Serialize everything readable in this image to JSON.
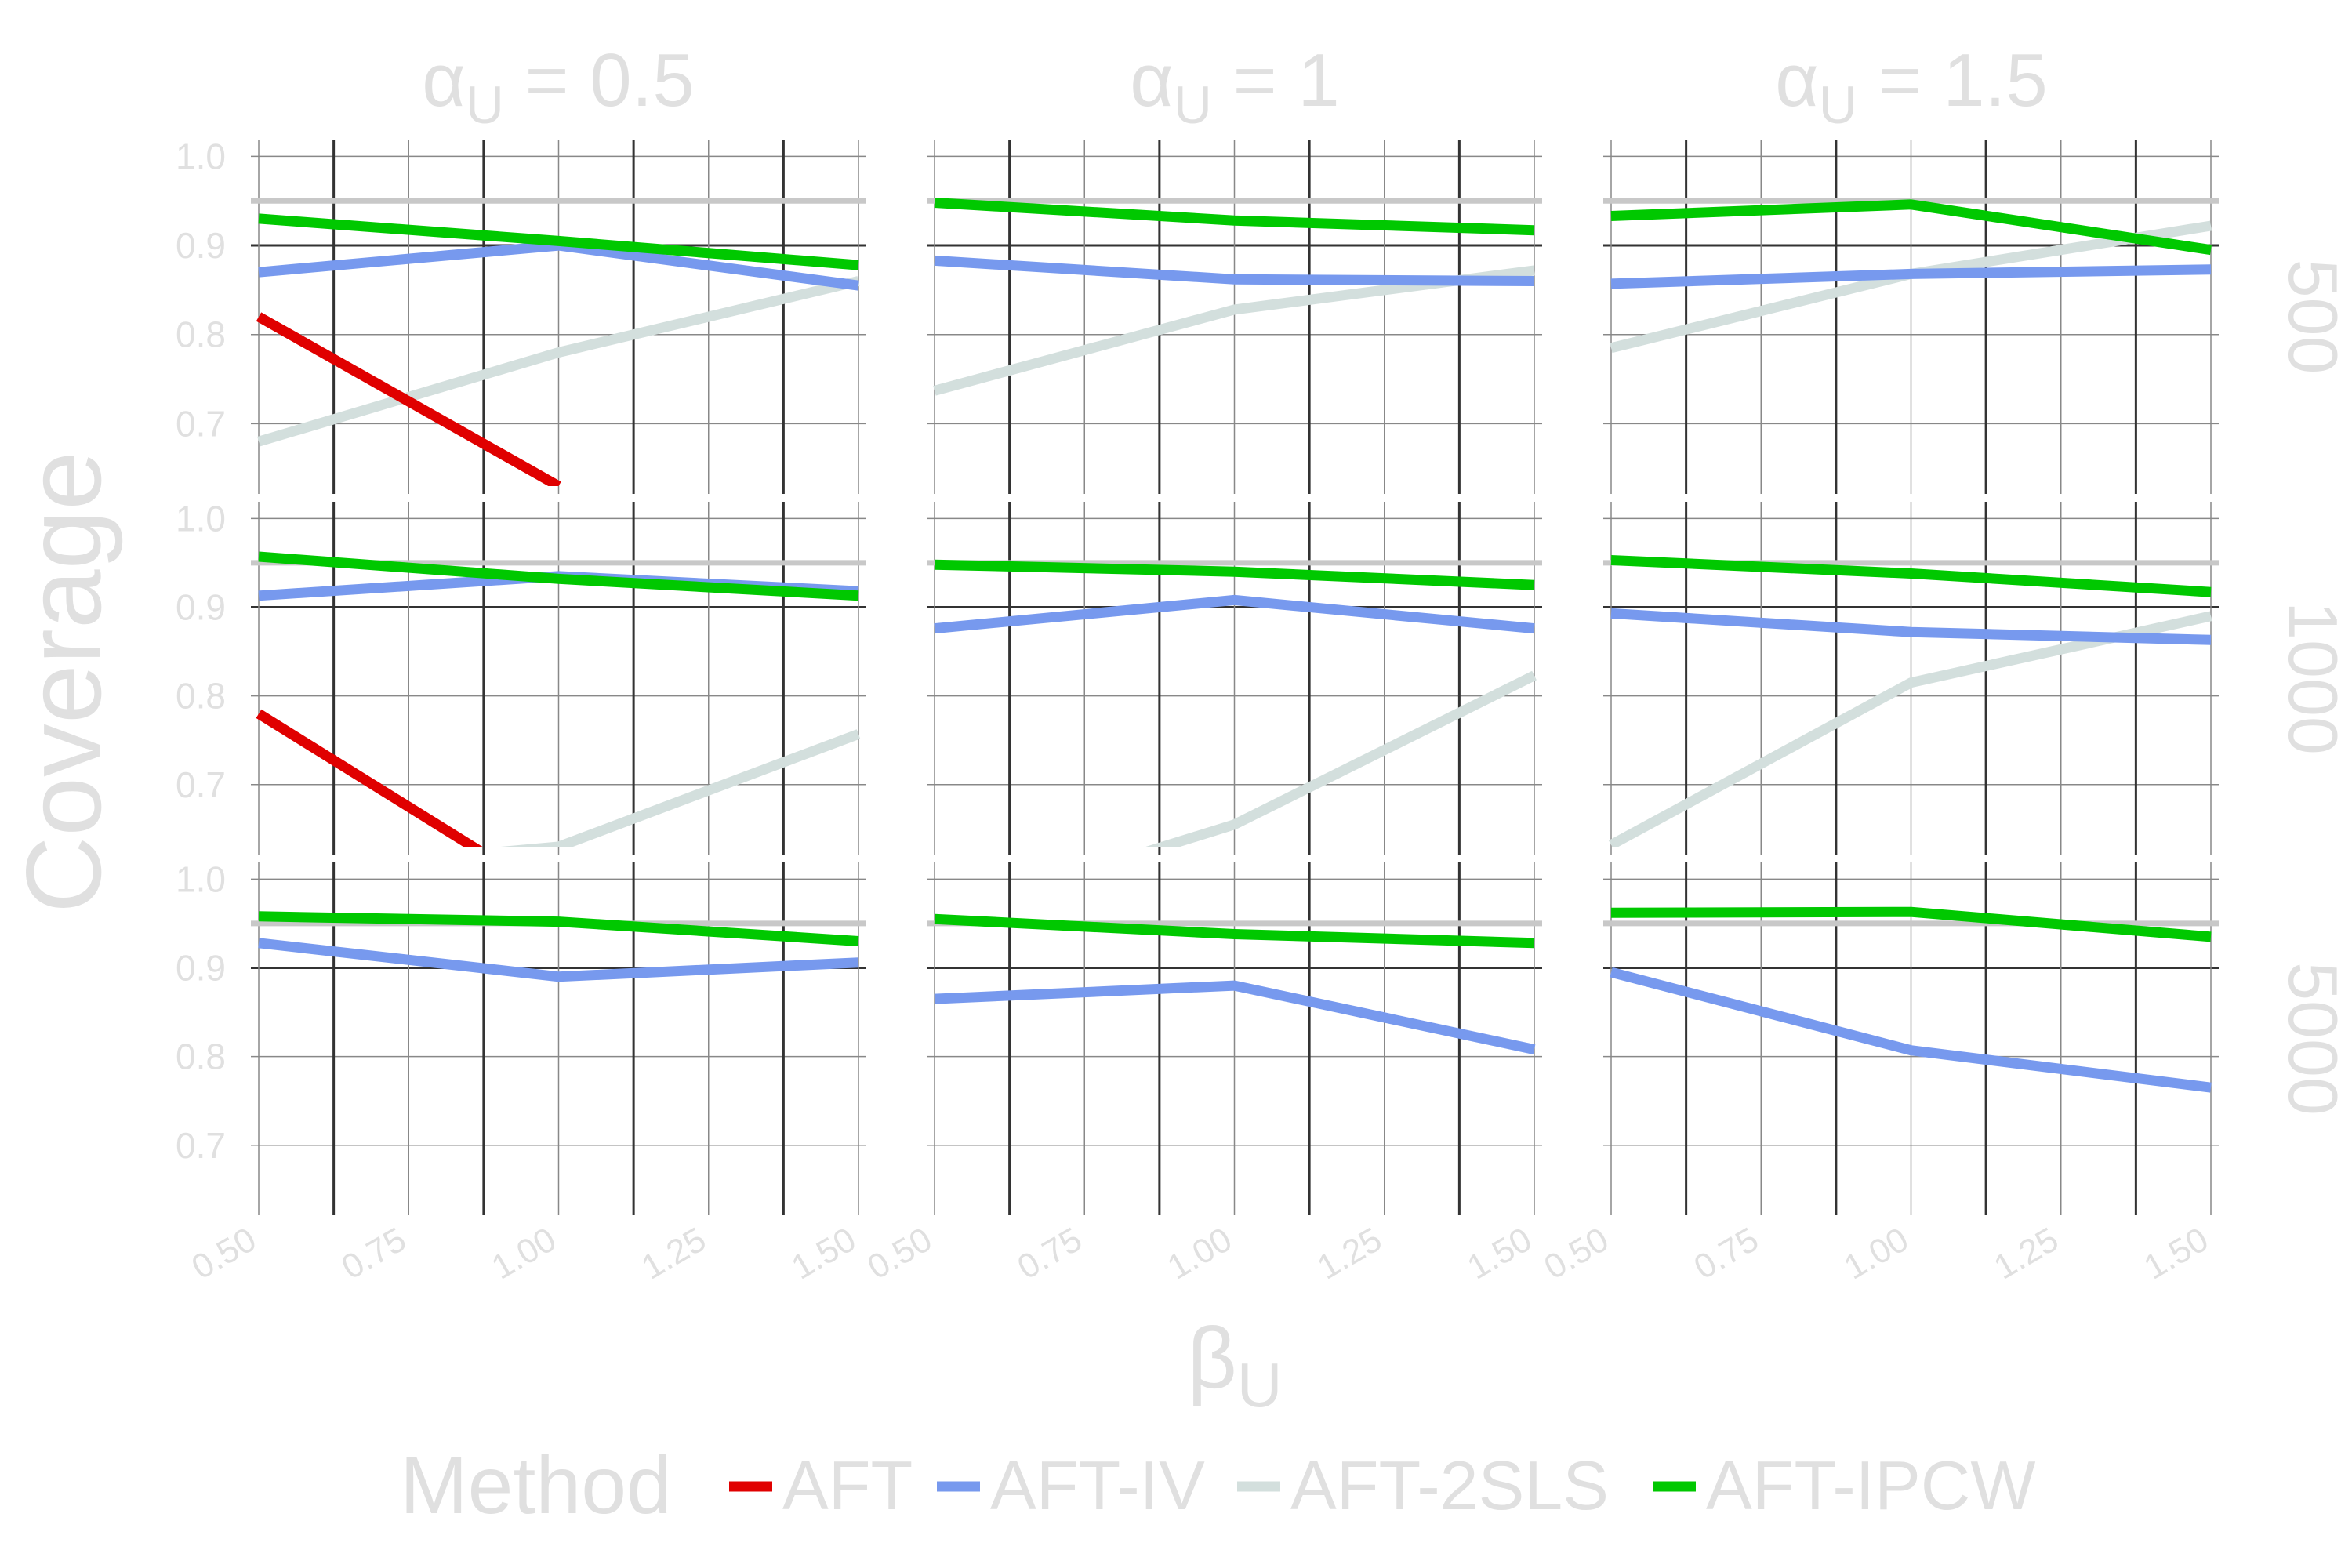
{
  "chart_data": {
    "type": "line",
    "ylabel": "Coverage",
    "xlabel_symbol": "β",
    "xlabel_sub": "U",
    "col_strip_symbol": "α",
    "col_strip_sub": "U",
    "col_values": [
      "= 0.5",
      "= 1",
      "= 1.5"
    ],
    "row_values": [
      "500",
      "1000",
      "5000"
    ],
    "ylim": [
      0.63,
      1.01
    ],
    "yticks": [
      1.0,
      0.9,
      0.8,
      0.7
    ],
    "ytick_labels": [
      "1.0",
      "0.9",
      "0.8",
      "0.7"
    ],
    "xlim": [
      0.5,
      1.5
    ],
    "xticks": [
      0.5,
      0.75,
      1.0,
      1.25,
      1.5
    ],
    "xtick_labels": [
      "0.50",
      "0.75",
      "1.00",
      "1.25",
      "1.50"
    ],
    "reference_line": 0.95,
    "x": [
      0.5,
      1.0,
      1.5
    ],
    "legend_title": "Method",
    "legend_position": "bottom",
    "series_meta": [
      {
        "name": "AFT",
        "color": "#e00000"
      },
      {
        "name": "AFT-IV",
        "color": "#7799ee"
      },
      {
        "name": "AFT-2SLS",
        "color": "#d3dfdd"
      },
      {
        "name": "AFT-IPCW",
        "color": "#00c800"
      }
    ],
    "panels": [
      {
        "row": 0,
        "col": 0,
        "series": [
          {
            "name": "AFT",
            "values": [
              0.82,
              0.63,
              null
            ]
          },
          {
            "name": "AFT-IV",
            "values": [
              0.87,
              0.9,
              0.855
            ]
          },
          {
            "name": "AFT-2SLS",
            "values": [
              0.68,
              0.78,
              0.86
            ]
          },
          {
            "name": "AFT-IPCW",
            "values": [
              0.93,
              0.905,
              0.878
            ]
          }
        ]
      },
      {
        "row": 0,
        "col": 1,
        "series": [
          {
            "name": "AFT-IV",
            "values": [
              0.883,
              0.862,
              0.86
            ]
          },
          {
            "name": "AFT-2SLS",
            "values": [
              0.737,
              0.828,
              0.872
            ]
          },
          {
            "name": "AFT-IPCW",
            "values": [
              0.948,
              0.928,
              0.917
            ]
          }
        ]
      },
      {
        "row": 0,
        "col": 2,
        "series": [
          {
            "name": "AFT-IV",
            "values": [
              0.857,
              0.868,
              0.873
            ]
          },
          {
            "name": "AFT-2SLS",
            "values": [
              0.785,
              0.868,
              0.922
            ]
          },
          {
            "name": "AFT-IPCW",
            "values": [
              0.933,
              0.946,
              0.895
            ]
          }
        ]
      },
      {
        "row": 1,
        "col": 0,
        "series": [
          {
            "name": "AFT",
            "values": [
              0.78,
              0.57,
              null
            ]
          },
          {
            "name": "AFT-IV",
            "values": [
              0.913,
              0.935,
              0.918
            ]
          },
          {
            "name": "AFT-2SLS",
            "values": [
              0.6,
              0.63,
              0.757
            ]
          },
          {
            "name": "AFT-IPCW",
            "values": [
              0.957,
              0.932,
              0.913
            ]
          }
        ]
      },
      {
        "row": 1,
        "col": 1,
        "series": [
          {
            "name": "AFT-IV",
            "values": [
              0.876,
              0.908,
              0.876
            ]
          },
          {
            "name": "AFT-2SLS",
            "values": [
              0.55,
              0.655,
              0.823
            ]
          },
          {
            "name": "AFT-IPCW",
            "values": [
              0.948,
              0.94,
              0.925
            ]
          }
        ]
      },
      {
        "row": 1,
        "col": 2,
        "series": [
          {
            "name": "AFT-IV",
            "values": [
              0.893,
              0.872,
              0.863
            ]
          },
          {
            "name": "AFT-2SLS",
            "values": [
              0.632,
              0.815,
              0.89
            ]
          },
          {
            "name": "AFT-IPCW",
            "values": [
              0.953,
              0.938,
              0.917
            ]
          }
        ]
      },
      {
        "row": 2,
        "col": 0,
        "series": [
          {
            "name": "AFT-IV",
            "values": [
              0.928,
              0.89,
              0.906
            ]
          },
          {
            "name": "AFT-IPCW",
            "values": [
              0.958,
              0.952,
              0.93
            ]
          }
        ]
      },
      {
        "row": 2,
        "col": 1,
        "series": [
          {
            "name": "AFT-IV",
            "values": [
              0.865,
              0.88,
              0.808
            ]
          },
          {
            "name": "AFT-IPCW",
            "values": [
              0.955,
              0.938,
              0.928
            ]
          }
        ]
      },
      {
        "row": 2,
        "col": 2,
        "series": [
          {
            "name": "AFT-IV",
            "values": [
              0.895,
              0.807,
              0.765
            ]
          },
          {
            "name": "AFT-IPCW",
            "values": [
              0.962,
              0.963,
              0.935
            ]
          }
        ]
      }
    ]
  }
}
